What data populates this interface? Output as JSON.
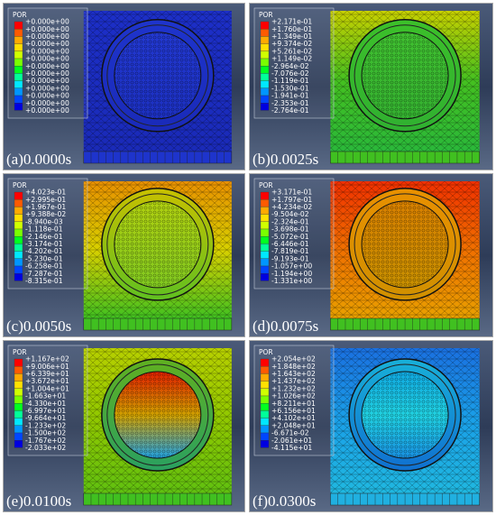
{
  "panels": [
    {
      "label": "(a)0.0000s",
      "legend_title": "POR",
      "legend_values": [
        "+0.000e+00",
        "+0.000e+00",
        "+0.000e+00",
        "+0.000e+00",
        "+0.000e+00",
        "+0.000e+00",
        "+0.000e+00",
        "+0.000e+00",
        "+0.000e+00",
        "+0.000e+00",
        "+0.000e+00",
        "+0.000e+00",
        "+0.000e+00"
      ]
    },
    {
      "label": "(b)0.0025s",
      "legend_title": "POR",
      "legend_values": [
        "+2.171e-01",
        "+1.760e-01",
        "+1.349e-01",
        "+9.374e-02",
        "+5.261e-02",
        "+1.149e-02",
        "-2.964e-02",
        "-7.076e-02",
        "-1.119e-01",
        "-1.530e-01",
        "-1.941e-01",
        "-2.353e-01",
        "-2.764e-01"
      ]
    },
    {
      "label": "(c)0.0050s",
      "legend_title": "POR",
      "legend_values": [
        "+4.023e-01",
        "+2.995e-01",
        "+1.967e-01",
        "+9.388e-02",
        "-8.940e-03",
        "-1.118e-01",
        "-2.146e-01",
        "-3.174e-01",
        "-4.202e-01",
        "-5.230e-01",
        "-6.258e-01",
        "-7.287e-01",
        "-8.315e-01"
      ]
    },
    {
      "label": "(d)0.0075s",
      "legend_title": "POR",
      "legend_values": [
        "+3.171e-01",
        "+1.797e-01",
        "+4.234e-02",
        "-9.504e-02",
        "-2.324e-01",
        "-3.698e-01",
        "-5.072e-01",
        "-6.446e-01",
        "-7.819e-01",
        "-9.193e-01",
        "-1.057e+00",
        "-1.194e+00",
        "-1.331e+00"
      ]
    },
    {
      "label": "(e)0.0100s",
      "legend_title": "POR",
      "legend_values": [
        "+1.167e+02",
        "+9.006e+01",
        "+6.339e+01",
        "+3.672e+01",
        "+1.004e+01",
        "-1.663e+01",
        "-4.330e+01",
        "-6.997e+01",
        "-9.664e+01",
        "-1.233e+02",
        "-1.500e+02",
        "-1.767e+02",
        "-2.033e+02"
      ]
    },
    {
      "label": "(f)0.0300s",
      "legend_title": "POR",
      "legend_values": [
        "+2.054e+02",
        "+1.848e+02",
        "+1.643e+02",
        "+1.437e+02",
        "+1.232e+02",
        "+1.026e+02",
        "+8.211e+01",
        "+6.156e+01",
        "+4.102e+01",
        "+2.048e+01",
        "-6.671e-02",
        "-2.061e+01",
        "-4.115e+01"
      ]
    }
  ]
}
